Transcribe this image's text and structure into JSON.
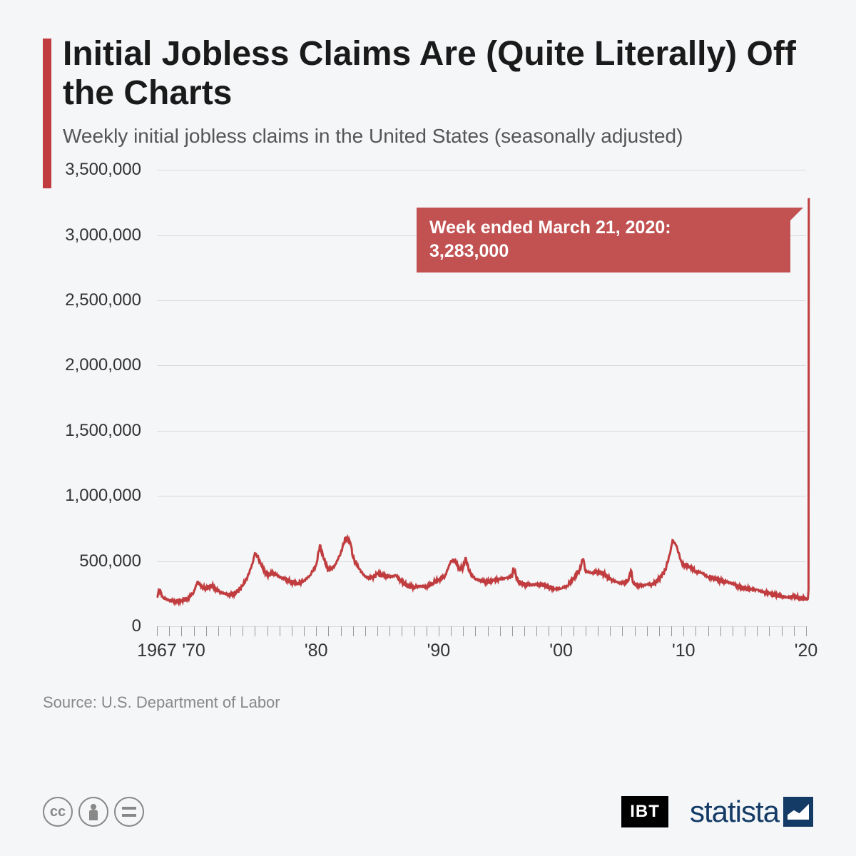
{
  "header": {
    "title": "Initial Jobless Claims Are (Quite Literally) Off the Charts",
    "subtitle": "Weekly initial jobless claims in the United States (seasonally adjusted)",
    "accent_color": "#c03c3e"
  },
  "chart": {
    "type": "line",
    "background_color": "#f4f6f8",
    "grid_color": "#d8dadd",
    "line_color": "#c03c3e",
    "line_width": 3,
    "ylim": [
      0,
      3500000
    ],
    "ytick_step": 500000,
    "y_ticks": [
      "0",
      "500,000",
      "1,000,000",
      "1,500,000",
      "2,000,000",
      "2,500,000",
      "3,000,000",
      "3,500,000"
    ],
    "xlim": [
      1967,
      2020
    ],
    "x_ticks": [
      {
        "pos": 1967,
        "label": "1967"
      },
      {
        "pos": 1970,
        "label": "'70"
      },
      {
        "pos": 1980,
        "label": "'80"
      },
      {
        "pos": 1990,
        "label": "'90"
      },
      {
        "pos": 2000,
        "label": "'00"
      },
      {
        "pos": 2010,
        "label": "'10"
      },
      {
        "pos": 2020,
        "label": "'20"
      }
    ],
    "x_minor_ticks": [
      1967,
      1968,
      1969,
      1970,
      1971,
      1972,
      1973,
      1974,
      1975,
      1976,
      1977,
      1978,
      1979,
      1980,
      1981,
      1982,
      1983,
      1984,
      1985,
      1986,
      1987,
      1988,
      1989,
      1990,
      1991,
      1992,
      1993,
      1994,
      1995,
      1996,
      1997,
      1998,
      1999,
      2000,
      2001,
      2002,
      2003,
      2004,
      2005,
      2006,
      2007,
      2008,
      2009,
      2010,
      2011,
      2012,
      2013,
      2014,
      2015,
      2016,
      2017,
      2018,
      2019,
      2020
    ],
    "series": [
      {
        "x": 1967.0,
        "y": 230000
      },
      {
        "x": 1967.2,
        "y": 280000
      },
      {
        "x": 1967.5,
        "y": 220000
      },
      {
        "x": 1968.0,
        "y": 200000
      },
      {
        "x": 1968.5,
        "y": 190000
      },
      {
        "x": 1969.0,
        "y": 200000
      },
      {
        "x": 1969.5,
        "y": 210000
      },
      {
        "x": 1970.0,
        "y": 260000
      },
      {
        "x": 1970.3,
        "y": 340000
      },
      {
        "x": 1970.7,
        "y": 300000
      },
      {
        "x": 1971.0,
        "y": 290000
      },
      {
        "x": 1971.5,
        "y": 310000
      },
      {
        "x": 1972.0,
        "y": 270000
      },
      {
        "x": 1972.5,
        "y": 250000
      },
      {
        "x": 1973.0,
        "y": 240000
      },
      {
        "x": 1973.5,
        "y": 260000
      },
      {
        "x": 1974.0,
        "y": 310000
      },
      {
        "x": 1974.4,
        "y": 380000
      },
      {
        "x": 1974.8,
        "y": 480000
      },
      {
        "x": 1975.0,
        "y": 560000
      },
      {
        "x": 1975.2,
        "y": 540000
      },
      {
        "x": 1975.5,
        "y": 470000
      },
      {
        "x": 1976.0,
        "y": 390000
      },
      {
        "x": 1976.5,
        "y": 410000
      },
      {
        "x": 1977.0,
        "y": 380000
      },
      {
        "x": 1977.5,
        "y": 360000
      },
      {
        "x": 1978.0,
        "y": 340000
      },
      {
        "x": 1978.5,
        "y": 330000
      },
      {
        "x": 1979.0,
        "y": 350000
      },
      {
        "x": 1979.5,
        "y": 390000
      },
      {
        "x": 1980.0,
        "y": 470000
      },
      {
        "x": 1980.3,
        "y": 620000
      },
      {
        "x": 1980.6,
        "y": 520000
      },
      {
        "x": 1981.0,
        "y": 430000
      },
      {
        "x": 1981.5,
        "y": 460000
      },
      {
        "x": 1982.0,
        "y": 560000
      },
      {
        "x": 1982.4,
        "y": 680000
      },
      {
        "x": 1982.8,
        "y": 640000
      },
      {
        "x": 1983.0,
        "y": 530000
      },
      {
        "x": 1983.5,
        "y": 440000
      },
      {
        "x": 1984.0,
        "y": 380000
      },
      {
        "x": 1984.5,
        "y": 370000
      },
      {
        "x": 1985.0,
        "y": 400000
      },
      {
        "x": 1985.5,
        "y": 390000
      },
      {
        "x": 1986.0,
        "y": 380000
      },
      {
        "x": 1986.5,
        "y": 390000
      },
      {
        "x": 1987.0,
        "y": 340000
      },
      {
        "x": 1987.5,
        "y": 310000
      },
      {
        "x": 1988.0,
        "y": 300000
      },
      {
        "x": 1988.5,
        "y": 310000
      },
      {
        "x": 1989.0,
        "y": 300000
      },
      {
        "x": 1989.5,
        "y": 330000
      },
      {
        "x": 1990.0,
        "y": 360000
      },
      {
        "x": 1990.5,
        "y": 380000
      },
      {
        "x": 1991.0,
        "y": 500000
      },
      {
        "x": 1991.3,
        "y": 510000
      },
      {
        "x": 1991.7,
        "y": 440000
      },
      {
        "x": 1992.0,
        "y": 450000
      },
      {
        "x": 1992.2,
        "y": 530000
      },
      {
        "x": 1992.5,
        "y": 420000
      },
      {
        "x": 1993.0,
        "y": 360000
      },
      {
        "x": 1993.5,
        "y": 350000
      },
      {
        "x": 1994.0,
        "y": 340000
      },
      {
        "x": 1994.5,
        "y": 350000
      },
      {
        "x": 1995.0,
        "y": 360000
      },
      {
        "x": 1995.5,
        "y": 370000
      },
      {
        "x": 1996.0,
        "y": 380000
      },
      {
        "x": 1996.1,
        "y": 450000
      },
      {
        "x": 1996.5,
        "y": 340000
      },
      {
        "x": 1997.0,
        "y": 320000
      },
      {
        "x": 1997.5,
        "y": 320000
      },
      {
        "x": 1998.0,
        "y": 320000
      },
      {
        "x": 1998.5,
        "y": 320000
      },
      {
        "x": 1999.0,
        "y": 300000
      },
      {
        "x": 1999.5,
        "y": 290000
      },
      {
        "x": 2000.0,
        "y": 290000
      },
      {
        "x": 2000.5,
        "y": 310000
      },
      {
        "x": 2001.0,
        "y": 370000
      },
      {
        "x": 2001.5,
        "y": 430000
      },
      {
        "x": 2001.8,
        "y": 520000
      },
      {
        "x": 2002.0,
        "y": 420000
      },
      {
        "x": 2002.5,
        "y": 410000
      },
      {
        "x": 2003.0,
        "y": 420000
      },
      {
        "x": 2003.5,
        "y": 400000
      },
      {
        "x": 2004.0,
        "y": 360000
      },
      {
        "x": 2004.5,
        "y": 340000
      },
      {
        "x": 2005.0,
        "y": 330000
      },
      {
        "x": 2005.5,
        "y": 350000
      },
      {
        "x": 2005.7,
        "y": 430000
      },
      {
        "x": 2005.9,
        "y": 330000
      },
      {
        "x": 2006.0,
        "y": 320000
      },
      {
        "x": 2006.5,
        "y": 310000
      },
      {
        "x": 2007.0,
        "y": 320000
      },
      {
        "x": 2007.5,
        "y": 320000
      },
      {
        "x": 2008.0,
        "y": 360000
      },
      {
        "x": 2008.5,
        "y": 430000
      },
      {
        "x": 2008.9,
        "y": 560000
      },
      {
        "x": 2009.1,
        "y": 660000
      },
      {
        "x": 2009.4,
        "y": 620000
      },
      {
        "x": 2009.8,
        "y": 500000
      },
      {
        "x": 2010.0,
        "y": 470000
      },
      {
        "x": 2010.5,
        "y": 460000
      },
      {
        "x": 2011.0,
        "y": 420000
      },
      {
        "x": 2011.5,
        "y": 410000
      },
      {
        "x": 2012.0,
        "y": 380000
      },
      {
        "x": 2012.5,
        "y": 370000
      },
      {
        "x": 2013.0,
        "y": 350000
      },
      {
        "x": 2013.5,
        "y": 340000
      },
      {
        "x": 2014.0,
        "y": 330000
      },
      {
        "x": 2014.5,
        "y": 300000
      },
      {
        "x": 2015.0,
        "y": 290000
      },
      {
        "x": 2015.5,
        "y": 280000
      },
      {
        "x": 2016.0,
        "y": 280000
      },
      {
        "x": 2016.5,
        "y": 260000
      },
      {
        "x": 2017.0,
        "y": 250000
      },
      {
        "x": 2017.5,
        "y": 240000
      },
      {
        "x": 2018.0,
        "y": 230000
      },
      {
        "x": 2018.5,
        "y": 220000
      },
      {
        "x": 2019.0,
        "y": 230000
      },
      {
        "x": 2019.5,
        "y": 215000
      },
      {
        "x": 2020.0,
        "y": 215000
      },
      {
        "x": 2020.15,
        "y": 210000
      },
      {
        "x": 2020.2,
        "y": 280000
      },
      {
        "x": 2020.22,
        "y": 3283000
      }
    ],
    "callout": {
      "line1": "Week ended March 21, 2020:",
      "line2": "3,283,000",
      "bg_color": "#c25152",
      "text_color": "#ffffff",
      "x_percent": 40,
      "y_value": 3180000
    },
    "axis_fontsize": 24,
    "axis_color": "#333333"
  },
  "source": "Source: U.S. Department of Labor",
  "footer": {
    "cc_text": "cc",
    "ibt_label": "IBT",
    "statista_label": "statista"
  }
}
